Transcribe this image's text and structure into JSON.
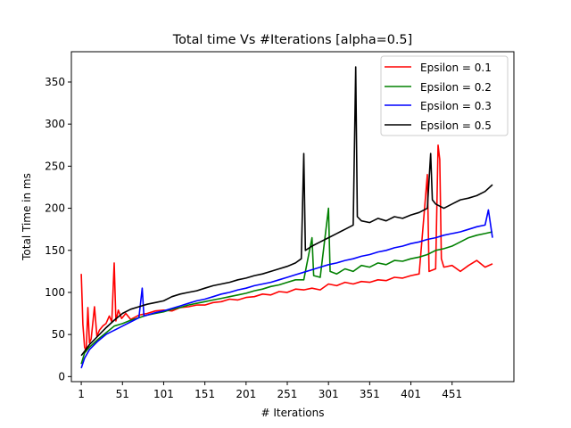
{
  "chart_data": {
    "type": "line",
    "title": "Total time Vs #Iterations [alpha=0.5]",
    "xlabel": "# Iterations",
    "ylabel": "Total Time in ms",
    "xlim": [
      -11,
      526
    ],
    "ylim": [
      -6,
      386
    ],
    "xticks": [
      1,
      51,
      101,
      151,
      201,
      251,
      301,
      351,
      401,
      451
    ],
    "yticks": [
      0,
      50,
      100,
      150,
      200,
      250,
      300,
      350
    ],
    "grid": false,
    "legend_position": "top-right",
    "series": [
      {
        "name": "Epsilon = 0.1",
        "color": "#ff0000",
        "points": [
          [
            1,
            122
          ],
          [
            3,
            62
          ],
          [
            5,
            35
          ],
          [
            7,
            30
          ],
          [
            9,
            82
          ],
          [
            11,
            40
          ],
          [
            13,
            45
          ],
          [
            17,
            83
          ],
          [
            20,
            48
          ],
          [
            23,
            55
          ],
          [
            27,
            60
          ],
          [
            31,
            63
          ],
          [
            35,
            72
          ],
          [
            38,
            65
          ],
          [
            41,
            135
          ],
          [
            43,
            66
          ],
          [
            46,
            79
          ],
          [
            50,
            69
          ],
          [
            55,
            75
          ],
          [
            61,
            68
          ],
          [
            71,
            73
          ],
          [
            81,
            75
          ],
          [
            91,
            78
          ],
          [
            101,
            79
          ],
          [
            111,
            78
          ],
          [
            121,
            82
          ],
          [
            131,
            83
          ],
          [
            141,
            85
          ],
          [
            151,
            85
          ],
          [
            161,
            88
          ],
          [
            171,
            89
          ],
          [
            181,
            92
          ],
          [
            191,
            91
          ],
          [
            201,
            94
          ],
          [
            211,
            95
          ],
          [
            221,
            98
          ],
          [
            231,
            97
          ],
          [
            241,
            101
          ],
          [
            251,
            100
          ],
          [
            261,
            104
          ],
          [
            271,
            103
          ],
          [
            281,
            105
          ],
          [
            291,
            103
          ],
          [
            301,
            110
          ],
          [
            311,
            108
          ],
          [
            321,
            112
          ],
          [
            331,
            110
          ],
          [
            341,
            113
          ],
          [
            351,
            112
          ],
          [
            361,
            115
          ],
          [
            371,
            114
          ],
          [
            381,
            118
          ],
          [
            391,
            117
          ],
          [
            401,
            120
          ],
          [
            411,
            122
          ],
          [
            421,
            240
          ],
          [
            423,
            125
          ],
          [
            431,
            128
          ],
          [
            434,
            275
          ],
          [
            436,
            258
          ],
          [
            438,
            140
          ],
          [
            441,
            130
          ],
          [
            451,
            132
          ],
          [
            461,
            125
          ],
          [
            471,
            132
          ],
          [
            481,
            138
          ],
          [
            491,
            130
          ],
          [
            500,
            134
          ]
        ]
      },
      {
        "name": "Epsilon = 0.2",
        "color": "#008000",
        "points": [
          [
            1,
            15
          ],
          [
            5,
            28
          ],
          [
            11,
            35
          ],
          [
            21,
            44
          ],
          [
            31,
            52
          ],
          [
            41,
            60
          ],
          [
            51,
            63
          ],
          [
            61,
            67
          ],
          [
            71,
            70
          ],
          [
            81,
            73
          ],
          [
            91,
            75
          ],
          [
            101,
            77
          ],
          [
            111,
            80
          ],
          [
            121,
            82
          ],
          [
            131,
            85
          ],
          [
            141,
            87
          ],
          [
            151,
            89
          ],
          [
            161,
            91
          ],
          [
            171,
            93
          ],
          [
            181,
            95
          ],
          [
            191,
            97
          ],
          [
            201,
            99
          ],
          [
            211,
            102
          ],
          [
            221,
            104
          ],
          [
            231,
            107
          ],
          [
            241,
            109
          ],
          [
            251,
            112
          ],
          [
            261,
            115
          ],
          [
            271,
            115
          ],
          [
            281,
            165
          ],
          [
            283,
            120
          ],
          [
            291,
            118
          ],
          [
            301,
            200
          ],
          [
            303,
            125
          ],
          [
            311,
            122
          ],
          [
            321,
            128
          ],
          [
            331,
            125
          ],
          [
            341,
            132
          ],
          [
            351,
            130
          ],
          [
            361,
            135
          ],
          [
            371,
            133
          ],
          [
            381,
            138
          ],
          [
            391,
            137
          ],
          [
            401,
            140
          ],
          [
            411,
            142
          ],
          [
            421,
            145
          ],
          [
            431,
            150
          ],
          [
            441,
            152
          ],
          [
            451,
            155
          ],
          [
            461,
            160
          ],
          [
            471,
            165
          ],
          [
            481,
            168
          ],
          [
            491,
            170
          ],
          [
            500,
            172
          ]
        ]
      },
      {
        "name": "Epsilon = 0.3",
        "color": "#0000ff",
        "points": [
          [
            1,
            10
          ],
          [
            5,
            22
          ],
          [
            11,
            32
          ],
          [
            21,
            42
          ],
          [
            31,
            50
          ],
          [
            41,
            55
          ],
          [
            51,
            60
          ],
          [
            61,
            65
          ],
          [
            71,
            70
          ],
          [
            75,
            105
          ],
          [
            77,
            72
          ],
          [
            81,
            73
          ],
          [
            91,
            76
          ],
          [
            101,
            78
          ],
          [
            111,
            81
          ],
          [
            121,
            84
          ],
          [
            131,
            87
          ],
          [
            141,
            90
          ],
          [
            151,
            92
          ],
          [
            161,
            95
          ],
          [
            171,
            98
          ],
          [
            181,
            100
          ],
          [
            191,
            103
          ],
          [
            201,
            105
          ],
          [
            211,
            108
          ],
          [
            221,
            110
          ],
          [
            231,
            112
          ],
          [
            241,
            115
          ],
          [
            251,
            118
          ],
          [
            261,
            121
          ],
          [
            271,
            124
          ],
          [
            281,
            127
          ],
          [
            291,
            130
          ],
          [
            301,
            133
          ],
          [
            311,
            135
          ],
          [
            321,
            138
          ],
          [
            331,
            140
          ],
          [
            341,
            143
          ],
          [
            351,
            145
          ],
          [
            361,
            148
          ],
          [
            371,
            150
          ],
          [
            381,
            153
          ],
          [
            391,
            155
          ],
          [
            401,
            158
          ],
          [
            411,
            160
          ],
          [
            421,
            163
          ],
          [
            431,
            165
          ],
          [
            441,
            168
          ],
          [
            451,
            170
          ],
          [
            461,
            172
          ],
          [
            471,
            175
          ],
          [
            481,
            178
          ],
          [
            491,
            180
          ],
          [
            495,
            198
          ],
          [
            500,
            165
          ]
        ]
      },
      {
        "name": "Epsilon = 0.5",
        "color": "#000000",
        "points": [
          [
            1,
            25
          ],
          [
            5,
            30
          ],
          [
            11,
            38
          ],
          [
            21,
            48
          ],
          [
            31,
            58
          ],
          [
            41,
            67
          ],
          [
            51,
            75
          ],
          [
            61,
            80
          ],
          [
            71,
            83
          ],
          [
            81,
            86
          ],
          [
            91,
            88
          ],
          [
            101,
            90
          ],
          [
            111,
            95
          ],
          [
            121,
            98
          ],
          [
            131,
            100
          ],
          [
            141,
            102
          ],
          [
            151,
            105
          ],
          [
            161,
            108
          ],
          [
            171,
            110
          ],
          [
            181,
            112
          ],
          [
            191,
            115
          ],
          [
            201,
            117
          ],
          [
            211,
            120
          ],
          [
            221,
            122
          ],
          [
            231,
            125
          ],
          [
            241,
            128
          ],
          [
            251,
            131
          ],
          [
            261,
            135
          ],
          [
            268,
            140
          ],
          [
            271,
            265
          ],
          [
            273,
            150
          ],
          [
            281,
            155
          ],
          [
            291,
            160
          ],
          [
            301,
            165
          ],
          [
            311,
            170
          ],
          [
            321,
            175
          ],
          [
            331,
            180
          ],
          [
            334,
            368
          ],
          [
            336,
            190
          ],
          [
            341,
            185
          ],
          [
            351,
            183
          ],
          [
            361,
            188
          ],
          [
            371,
            185
          ],
          [
            381,
            190
          ],
          [
            391,
            188
          ],
          [
            401,
            192
          ],
          [
            411,
            195
          ],
          [
            421,
            200
          ],
          [
            425,
            265
          ],
          [
            427,
            210
          ],
          [
            431,
            205
          ],
          [
            441,
            200
          ],
          [
            451,
            205
          ],
          [
            461,
            210
          ],
          [
            471,
            212
          ],
          [
            481,
            215
          ],
          [
            491,
            220
          ],
          [
            500,
            228
          ]
        ]
      }
    ]
  }
}
